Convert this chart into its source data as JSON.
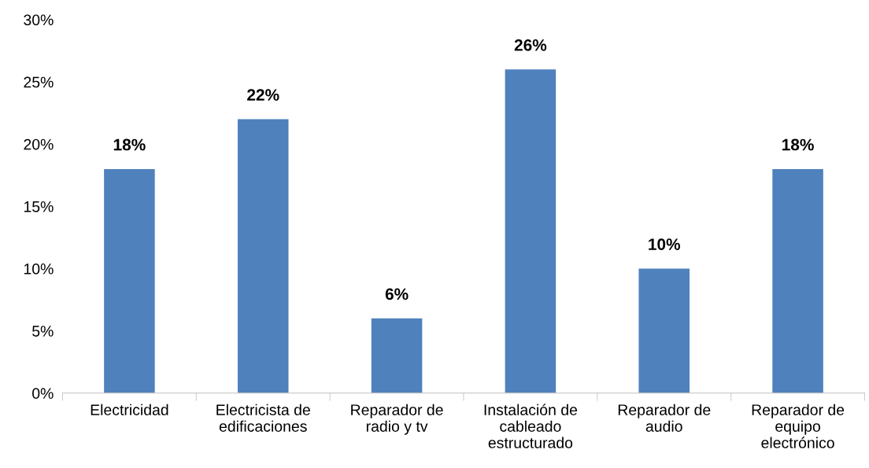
{
  "chart_data": {
    "type": "bar",
    "categories": [
      "Electricidad",
      "Electricista de\nedificaciones",
      "Reparador de\nradio y tv",
      "Instalación de\ncableado\nestructurado",
      "Reparador de\naudio",
      "Reparador de\nequipo\nelectrónico"
    ],
    "values": [
      18,
      22,
      6,
      26,
      10,
      18
    ],
    "value_labels": [
      "18%",
      "22%",
      "6%",
      "26%",
      "10%",
      "18%"
    ],
    "color": "#4f81bd",
    "ylim": [
      0,
      30
    ],
    "yticks": [
      {
        "value": 0,
        "label": "0%"
      },
      {
        "value": 5,
        "label": "5%"
      },
      {
        "value": 10,
        "label": "10%"
      },
      {
        "value": 15,
        "label": "15%"
      },
      {
        "value": 20,
        "label": "20%"
      },
      {
        "value": 25,
        "label": "25%"
      },
      {
        "value": 30,
        "label": "30%"
      }
    ],
    "grid": false
  }
}
